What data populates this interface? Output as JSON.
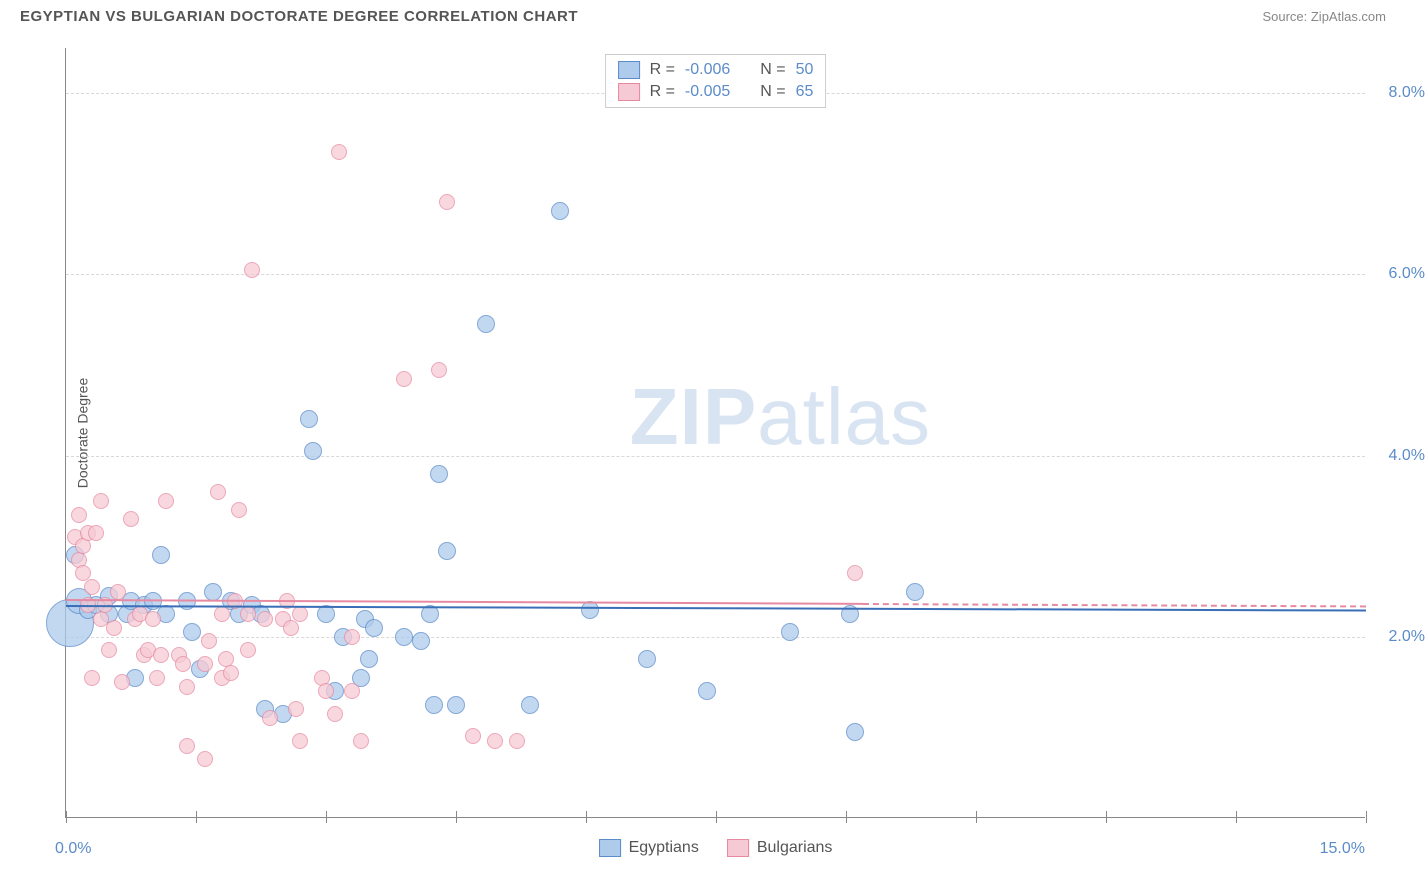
{
  "header": {
    "title": "EGYPTIAN VS BULGARIAN DOCTORATE DEGREE CORRELATION CHART",
    "source_prefix": "Source: ",
    "source_name": "ZipAtlas.com"
  },
  "watermark": {
    "bold": "ZIP",
    "light": "atlas"
  },
  "chart": {
    "type": "scatter",
    "background_color": "#ffffff",
    "grid_color": "#d8d8d8",
    "axis_color": "#888888",
    "tick_label_color": "#5b8cc9",
    "axis_label_color": "#555555",
    "ylabel": "Doctorate Degree",
    "ylabel_fontsize": 14,
    "xlim": [
      0,
      15
    ],
    "ylim": [
      0,
      8.5
    ],
    "ytick_values": [
      2,
      4,
      6,
      8
    ],
    "ytick_labels": [
      "2.0%",
      "4.0%",
      "6.0%",
      "8.0%"
    ],
    "xtick_values": [
      0,
      1.5,
      3,
      4.5,
      6,
      7.5,
      9,
      10.5,
      12,
      13.5,
      15
    ],
    "x_min_label": "0.0%",
    "x_max_label": "15.0%",
    "series": [
      {
        "name": "Egyptians",
        "marker_fill": "#aecbec",
        "marker_stroke": "#5b8cc9",
        "marker_radius": 9,
        "line_color": "#3a6fb7",
        "regression": {
          "y_start": 2.35,
          "y_end": 2.3,
          "solid_until_x": 15
        },
        "points": [
          {
            "x": 0.05,
            "y": 2.15,
            "r": 24
          },
          {
            "x": 0.15,
            "y": 2.4,
            "r": 13
          },
          {
            "x": 0.1,
            "y": 2.9
          },
          {
            "x": 0.25,
            "y": 2.3
          },
          {
            "x": 0.35,
            "y": 2.35
          },
          {
            "x": 0.5,
            "y": 2.25
          },
          {
            "x": 0.5,
            "y": 2.45
          },
          {
            "x": 0.7,
            "y": 2.25
          },
          {
            "x": 0.75,
            "y": 2.4
          },
          {
            "x": 0.8,
            "y": 1.55
          },
          {
            "x": 0.9,
            "y": 2.35
          },
          {
            "x": 1.0,
            "y": 2.4
          },
          {
            "x": 1.1,
            "y": 2.9
          },
          {
            "x": 1.15,
            "y": 2.25
          },
          {
            "x": 1.4,
            "y": 2.4
          },
          {
            "x": 1.45,
            "y": 2.05
          },
          {
            "x": 1.55,
            "y": 1.65
          },
          {
            "x": 1.7,
            "y": 2.5
          },
          {
            "x": 1.9,
            "y": 2.4
          },
          {
            "x": 2.0,
            "y": 2.25
          },
          {
            "x": 2.15,
            "y": 2.35
          },
          {
            "x": 2.25,
            "y": 2.25
          },
          {
            "x": 2.3,
            "y": 1.2
          },
          {
            "x": 2.5,
            "y": 1.15
          },
          {
            "x": 2.8,
            "y": 4.4
          },
          {
            "x": 2.85,
            "y": 4.05
          },
          {
            "x": 3.0,
            "y": 2.25
          },
          {
            "x": 3.1,
            "y": 1.4
          },
          {
            "x": 3.2,
            "y": 2.0
          },
          {
            "x": 3.4,
            "y": 1.55
          },
          {
            "x": 3.45,
            "y": 2.2
          },
          {
            "x": 3.5,
            "y": 1.75
          },
          {
            "x": 3.55,
            "y": 2.1
          },
          {
            "x": 3.9,
            "y": 2.0
          },
          {
            "x": 4.1,
            "y": 1.95
          },
          {
            "x": 4.2,
            "y": 2.25
          },
          {
            "x": 4.25,
            "y": 1.25
          },
          {
            "x": 4.5,
            "y": 1.25
          },
          {
            "x": 4.3,
            "y": 3.8
          },
          {
            "x": 4.4,
            "y": 2.95
          },
          {
            "x": 4.85,
            "y": 5.45
          },
          {
            "x": 5.35,
            "y": 1.25
          },
          {
            "x": 5.7,
            "y": 6.7
          },
          {
            "x": 6.05,
            "y": 2.3
          },
          {
            "x": 6.7,
            "y": 1.75
          },
          {
            "x": 7.4,
            "y": 1.4
          },
          {
            "x": 8.35,
            "y": 2.05
          },
          {
            "x": 9.1,
            "y": 0.95
          },
          {
            "x": 9.05,
            "y": 2.25
          },
          {
            "x": 9.8,
            "y": 2.5
          }
        ]
      },
      {
        "name": "Bulgarians",
        "marker_fill": "#f6cad4",
        "marker_stroke": "#e68aa2",
        "marker_radius": 8,
        "line_color": "#e68aa2",
        "regression": {
          "y_start": 2.42,
          "y_end": 2.35,
          "solid_until_x": 9.2
        },
        "points": [
          {
            "x": 0.1,
            "y": 3.1
          },
          {
            "x": 0.15,
            "y": 2.85
          },
          {
            "x": 0.15,
            "y": 3.35
          },
          {
            "x": 0.2,
            "y": 2.7
          },
          {
            "x": 0.2,
            "y": 3.0
          },
          {
            "x": 0.25,
            "y": 2.35
          },
          {
            "x": 0.25,
            "y": 3.15
          },
          {
            "x": 0.3,
            "y": 2.55
          },
          {
            "x": 0.3,
            "y": 1.55
          },
          {
            "x": 0.35,
            "y": 3.15
          },
          {
            "x": 0.4,
            "y": 3.5
          },
          {
            "x": 0.4,
            "y": 2.2
          },
          {
            "x": 0.45,
            "y": 2.35
          },
          {
            "x": 0.5,
            "y": 1.85
          },
          {
            "x": 0.55,
            "y": 2.1
          },
          {
            "x": 0.6,
            "y": 2.5
          },
          {
            "x": 0.65,
            "y": 1.5
          },
          {
            "x": 0.75,
            "y": 3.3
          },
          {
            "x": 0.8,
            "y": 2.2
          },
          {
            "x": 0.85,
            "y": 2.25
          },
          {
            "x": 0.9,
            "y": 1.8
          },
          {
            "x": 0.95,
            "y": 1.85
          },
          {
            "x": 1.0,
            "y": 2.2
          },
          {
            "x": 1.05,
            "y": 1.55
          },
          {
            "x": 1.1,
            "y": 1.8
          },
          {
            "x": 1.15,
            "y": 3.5
          },
          {
            "x": 1.3,
            "y": 1.8
          },
          {
            "x": 1.35,
            "y": 1.7
          },
          {
            "x": 1.4,
            "y": 1.45
          },
          {
            "x": 1.4,
            "y": 0.8
          },
          {
            "x": 1.6,
            "y": 0.65
          },
          {
            "x": 1.6,
            "y": 1.7
          },
          {
            "x": 1.65,
            "y": 1.95
          },
          {
            "x": 1.75,
            "y": 3.6
          },
          {
            "x": 1.8,
            "y": 1.55
          },
          {
            "x": 1.8,
            "y": 2.25
          },
          {
            "x": 1.85,
            "y": 1.75
          },
          {
            "x": 1.9,
            "y": 1.6
          },
          {
            "x": 2.0,
            "y": 3.4
          },
          {
            "x": 1.95,
            "y": 2.4
          },
          {
            "x": 2.1,
            "y": 2.25
          },
          {
            "x": 2.1,
            "y": 1.85
          },
          {
            "x": 2.15,
            "y": 6.05
          },
          {
            "x": 2.3,
            "y": 2.2
          },
          {
            "x": 2.35,
            "y": 1.1
          },
          {
            "x": 2.5,
            "y": 2.2
          },
          {
            "x": 2.55,
            "y": 2.4
          },
          {
            "x": 2.6,
            "y": 2.1
          },
          {
            "x": 2.65,
            "y": 1.2
          },
          {
            "x": 2.7,
            "y": 2.25
          },
          {
            "x": 2.7,
            "y": 0.85
          },
          {
            "x": 2.95,
            "y": 1.55
          },
          {
            "x": 3.0,
            "y": 1.4
          },
          {
            "x": 3.1,
            "y": 1.15
          },
          {
            "x": 3.15,
            "y": 7.35
          },
          {
            "x": 3.3,
            "y": 2.0
          },
          {
            "x": 3.3,
            "y": 1.4
          },
          {
            "x": 3.4,
            "y": 0.85
          },
          {
            "x": 3.9,
            "y": 4.85
          },
          {
            "x": 4.3,
            "y": 4.95
          },
          {
            "x": 4.4,
            "y": 6.8
          },
          {
            "x": 4.7,
            "y": 0.9
          },
          {
            "x": 4.95,
            "y": 0.85
          },
          {
            "x": 5.2,
            "y": 0.85
          },
          {
            "x": 9.1,
            "y": 2.7
          }
        ]
      }
    ],
    "legend_top": {
      "border_color": "#cccccc",
      "rows": [
        {
          "swatch_fill": "#aecbec",
          "swatch_stroke": "#5b8cc9",
          "r_label": "R =",
          "r_value": "-0.006",
          "n_label": "N =",
          "n_value": "50"
        },
        {
          "swatch_fill": "#f6cad4",
          "swatch_stroke": "#e68aa2",
          "r_label": "R =",
          "r_value": "-0.005",
          "n_label": "N =",
          "n_value": "65"
        }
      ]
    },
    "legend_bottom": {
      "items": [
        {
          "swatch_fill": "#aecbec",
          "swatch_stroke": "#5b8cc9",
          "label": "Egyptians"
        },
        {
          "swatch_fill": "#f6cad4",
          "swatch_stroke": "#e68aa2",
          "label": "Bulgarians"
        }
      ]
    }
  }
}
